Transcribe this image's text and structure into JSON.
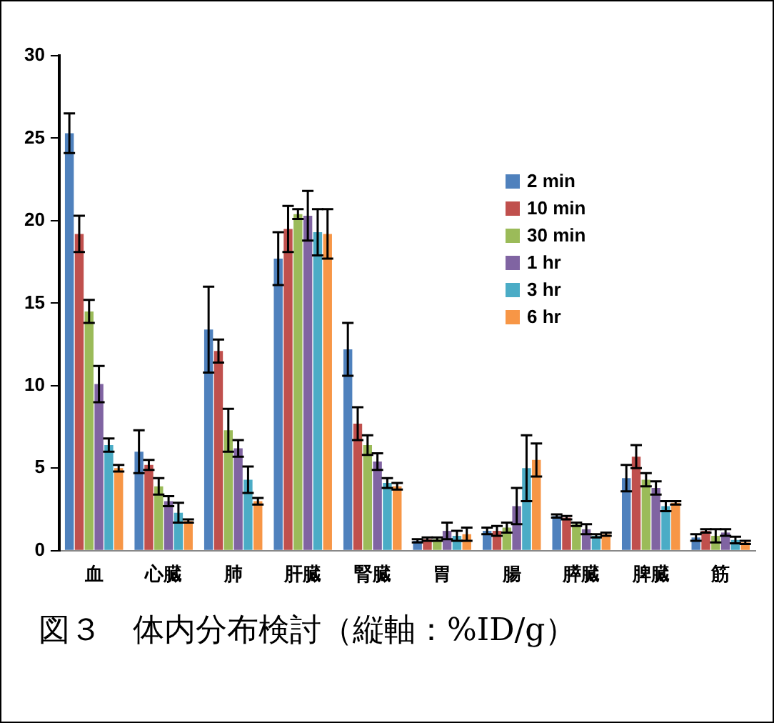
{
  "chart_data": {
    "type": "bar",
    "categories": [
      "血",
      "心臓",
      "肺",
      "肝臓",
      "腎臓",
      "胃",
      "腸",
      "膵臓",
      "脾臓",
      "筋"
    ],
    "series": [
      {
        "name": "2 min",
        "color": "#4f81bd",
        "values": [
          25.3,
          6.0,
          13.4,
          17.7,
          12.2,
          0.6,
          1.2,
          2.1,
          4.4,
          0.8
        ],
        "errors": [
          1.2,
          1.3,
          2.6,
          1.6,
          1.6,
          0.1,
          0.2,
          0.1,
          0.8,
          0.2
        ]
      },
      {
        "name": "10 min",
        "color": "#c0504d",
        "values": [
          19.2,
          5.2,
          12.1,
          19.5,
          7.7,
          0.7,
          1.2,
          2.0,
          5.7,
          1.2
        ],
        "errors": [
          1.1,
          0.3,
          0.7,
          1.4,
          1.0,
          0.1,
          0.3,
          0.1,
          0.7,
          0.1
        ]
      },
      {
        "name": "30 min",
        "color": "#9bbb59",
        "values": [
          14.5,
          3.9,
          7.3,
          20.4,
          6.4,
          0.7,
          1.4,
          1.6,
          4.3,
          0.9
        ],
        "errors": [
          0.7,
          0.5,
          1.3,
          0.3,
          0.6,
          0.1,
          0.3,
          0.1,
          0.4,
          0.4
        ]
      },
      {
        "name": "1 hr",
        "color": "#8064a2",
        "values": [
          10.1,
          3.0,
          6.2,
          20.3,
          5.4,
          1.2,
          2.7,
          1.3,
          3.8,
          1.1
        ],
        "errors": [
          1.1,
          0.3,
          0.5,
          1.5,
          0.5,
          0.5,
          1.1,
          0.3,
          0.4,
          0.2
        ]
      },
      {
        "name": "3 hr",
        "color": "#4bacc6",
        "values": [
          6.4,
          2.3,
          4.3,
          19.3,
          4.1,
          0.9,
          5.0,
          0.9,
          2.7,
          0.65
        ],
        "errors": [
          0.4,
          0.6,
          0.8,
          1.4,
          0.3,
          0.3,
          2.0,
          0.1,
          0.3,
          0.2
        ]
      },
      {
        "name": "6 hr",
        "color": "#f79646",
        "values": [
          5.0,
          1.8,
          3.0,
          19.2,
          3.9,
          1.0,
          5.5,
          1.0,
          2.9,
          0.5
        ],
        "errors": [
          0.2,
          0.1,
          0.2,
          1.5,
          0.2,
          0.4,
          1.0,
          0.1,
          0.1,
          0.1
        ]
      }
    ],
    "ylim": [
      0,
      30
    ],
    "yticks": [
      0,
      5,
      10,
      15,
      20,
      25,
      30
    ],
    "grid": false,
    "legend": "top right",
    "annotations": [
      "図３　体内分布検討（縦軸：%ID/g）"
    ]
  }
}
